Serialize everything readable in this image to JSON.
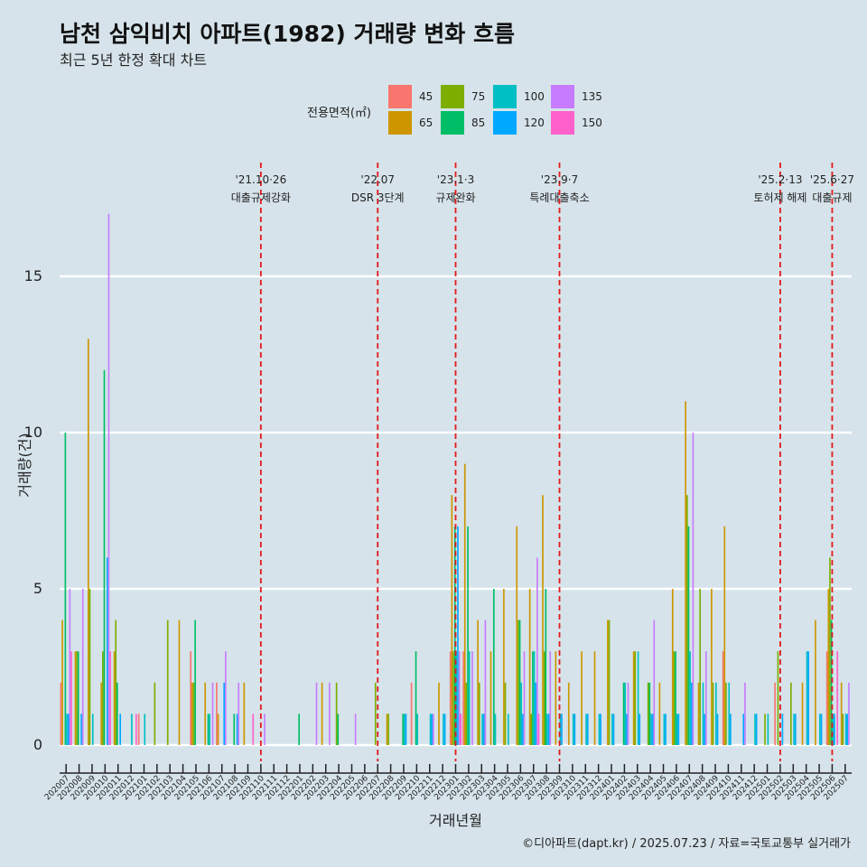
{
  "title": "남천 삼익비치 아파트(1982) 거래량 변화 흐름",
  "subtitle": "최근 5년 한정 확대 차트",
  "credit": "©디아파트(dapt.kr) / 2025.07.23 / 자료=국토교통부 실거래가",
  "legend": {
    "title": "전용면적(㎡)",
    "items": [
      {
        "label": "45",
        "color": "#F8766D"
      },
      {
        "label": "65",
        "color": "#CD9600"
      },
      {
        "label": "75",
        "color": "#7CAE00"
      },
      {
        "label": "85",
        "color": "#00BE67"
      },
      {
        "label": "100",
        "color": "#00BFC4"
      },
      {
        "label": "120",
        "color": "#00A9FF"
      },
      {
        "label": "135",
        "color": "#C77CFF"
      },
      {
        "label": "150",
        "color": "#FF61CC"
      }
    ]
  },
  "chart_data": {
    "type": "bar",
    "xlabel": "거래년월",
    "ylabel": "거래량(건)",
    "ylim": [
      0,
      17.5
    ],
    "yticks": [
      0,
      5,
      10,
      15
    ],
    "grid": "horizontal",
    "legend_position": "top",
    "categories": [
      "202007",
      "202008",
      "202009",
      "202010",
      "202011",
      "202012",
      "202101",
      "202102",
      "202103",
      "202104",
      "202105",
      "202106",
      "202107",
      "202108",
      "202109",
      "202110",
      "202111",
      "202112",
      "202201",
      "202202",
      "202203",
      "202204",
      "202205",
      "202206",
      "202207",
      "202208",
      "202209",
      "202210",
      "202211",
      "202212",
      "202301",
      "202302",
      "202303",
      "202304",
      "202305",
      "202306",
      "202307",
      "202308",
      "202309",
      "202310",
      "202311",
      "202312",
      "202401",
      "202402",
      "202403",
      "202404",
      "202405",
      "202406",
      "202407",
      "202408",
      "202409",
      "202410",
      "202411",
      "202412",
      "202501",
      "202502",
      "202503",
      "202504",
      "202505",
      "202506",
      "202507"
    ],
    "tick_labels": [
      "202007",
      "202008",
      "202009",
      "202010",
      "202011",
      "202012",
      "202101",
      "202102",
      "202103",
      "202104",
      "202105",
      "202106",
      "202107",
      "202108",
      "202109",
      "202110",
      "202111",
      "202112",
      "202201",
      "202202",
      "202203",
      "202204",
      "202205",
      "202206",
      "202207",
      "202208",
      "202209",
      "202210",
      "202211",
      "202212",
      "202301",
      "202302",
      "202303",
      "202304",
      "202305",
      "202306",
      "202307",
      "202308",
      "202309",
      "202310",
      "202311",
      "202312",
      "202401",
      "202402",
      "202403",
      "202404",
      "202405",
      "202406",
      "202407",
      "202408",
      "202409",
      "202410",
      "202411",
      "202412",
      "202501",
      "202502",
      "202503",
      "202504",
      "202505",
      "202506",
      "202507"
    ],
    "series": [
      {
        "name": "45",
        "values": [
          2,
          0,
          0,
          0,
          0,
          0,
          1,
          0,
          0,
          0,
          3,
          0,
          2,
          0,
          0,
          0,
          0,
          0,
          0,
          0,
          0,
          0,
          0,
          0,
          0,
          0,
          0,
          2,
          0,
          0,
          3,
          3,
          0,
          0,
          0,
          0,
          0,
          0,
          0,
          0,
          0,
          0,
          0,
          0,
          0,
          0,
          0,
          0,
          0,
          0,
          0,
          3,
          0,
          0,
          0,
          2,
          0,
          0,
          0,
          3,
          0
        ]
      },
      {
        "name": "65",
        "values": [
          4,
          3,
          13,
          2,
          3,
          0,
          0,
          0,
          0,
          4,
          2,
          2,
          1,
          0,
          2,
          0,
          0,
          0,
          0,
          0,
          2,
          0,
          0,
          0,
          0,
          1,
          0,
          0,
          0,
          2,
          8,
          9,
          4,
          3,
          5,
          7,
          5,
          8,
          3,
          2,
          3,
          3,
          4,
          0,
          3,
          0,
          2,
          5,
          11,
          2,
          5,
          7,
          0,
          0,
          0,
          0,
          0,
          2,
          4,
          5,
          2
        ]
      },
      {
        "name": "75",
        "values": [
          0,
          3,
          5,
          3,
          4,
          0,
          0,
          2,
          4,
          0,
          2,
          0,
          0,
          0,
          0,
          0,
          0,
          0,
          0,
          0,
          0,
          2,
          0,
          0,
          2,
          1,
          0,
          0,
          0,
          0,
          3,
          2,
          2,
          0,
          2,
          4,
          1,
          3,
          0,
          0,
          0,
          0,
          4,
          0,
          3,
          2,
          0,
          3,
          8,
          5,
          2,
          2,
          0,
          0,
          1,
          3,
          2,
          0,
          0,
          6,
          1
        ]
      },
      {
        "name": "85",
        "values": [
          10,
          3,
          0,
          12,
          2,
          0,
          0,
          0,
          0,
          0,
          4,
          1,
          0,
          1,
          0,
          0,
          0,
          0,
          1,
          0,
          0,
          1,
          0,
          0,
          0,
          0,
          1,
          3,
          0,
          0,
          7,
          7,
          0,
          5,
          0,
          4,
          3,
          5,
          0,
          0,
          0,
          0,
          0,
          2,
          0,
          2,
          0,
          3,
          7,
          0,
          0,
          0,
          0,
          0,
          0,
          0,
          0,
          0,
          0,
          4,
          0
        ]
      },
      {
        "name": "100",
        "values": [
          1,
          0,
          1,
          0,
          0,
          1,
          1,
          0,
          0,
          0,
          0,
          1,
          0,
          0,
          0,
          0,
          0,
          0,
          0,
          0,
          0,
          0,
          0,
          0,
          0,
          0,
          1,
          1,
          1,
          1,
          3,
          3,
          1,
          1,
          1,
          2,
          3,
          1,
          1,
          1,
          1,
          1,
          1,
          2,
          3,
          1,
          1,
          1,
          3,
          2,
          2,
          2,
          0,
          1,
          1,
          0,
          1,
          3,
          1,
          1,
          1
        ]
      },
      {
        "name": "120",
        "values": [
          1,
          1,
          0,
          6,
          1,
          0,
          0,
          0,
          0,
          0,
          0,
          0,
          2,
          1,
          0,
          0,
          0,
          0,
          0,
          0,
          0,
          0,
          0,
          0,
          0,
          0,
          1,
          0,
          1,
          1,
          7,
          0,
          1,
          0,
          0,
          1,
          2,
          1,
          1,
          1,
          1,
          1,
          1,
          1,
          1,
          1,
          1,
          1,
          2,
          1,
          1,
          1,
          1,
          1,
          0,
          1,
          1,
          3,
          1,
          1,
          1
        ]
      },
      {
        "name": "135",
        "values": [
          5,
          5,
          0,
          17,
          0,
          0,
          0,
          0,
          0,
          0,
          0,
          2,
          3,
          2,
          0,
          1,
          0,
          0,
          0,
          2,
          2,
          0,
          1,
          0,
          0,
          0,
          0,
          0,
          1,
          0,
          3,
          3,
          4,
          0,
          0,
          3,
          6,
          3,
          0,
          0,
          0,
          0,
          0,
          2,
          0,
          4,
          0,
          0,
          10,
          3,
          0,
          0,
          2,
          0,
          0,
          0,
          0,
          0,
          0,
          0,
          2
        ]
      },
      {
        "name": "150",
        "values": [
          3,
          0,
          0,
          3,
          0,
          1,
          0,
          0,
          0,
          0,
          0,
          0,
          0,
          0,
          1,
          0,
          0,
          0,
          0,
          0,
          0,
          0,
          0,
          0,
          0,
          0,
          0,
          0,
          0,
          0,
          1,
          0,
          0,
          0,
          0,
          0,
          1,
          0,
          0,
          0,
          0,
          0,
          0,
          0,
          0,
          0,
          0,
          0,
          0,
          0,
          0,
          0,
          0,
          0,
          0,
          0,
          0,
          0,
          0,
          3,
          0
        ]
      }
    ],
    "annotations": [
      {
        "month": "202110",
        "label_top": "'21.10·26",
        "label_bottom": "대출규제강화"
      },
      {
        "month": "202207",
        "label_top": "'22.07",
        "label_bottom": "DSR 3단계"
      },
      {
        "month": "202301",
        "label_top": "'23.1·3",
        "label_bottom": "규제완화"
      },
      {
        "month": "202309",
        "label_top": "'23.9·7",
        "label_bottom": "특례대출축소"
      },
      {
        "month": "202502",
        "label_top": "'25.2·13",
        "label_bottom": "토허제 해제"
      },
      {
        "month": "202506",
        "label_top": "'25.6·27",
        "label_bottom": "대출규제"
      }
    ],
    "annotation_color": "#e31a1c"
  }
}
